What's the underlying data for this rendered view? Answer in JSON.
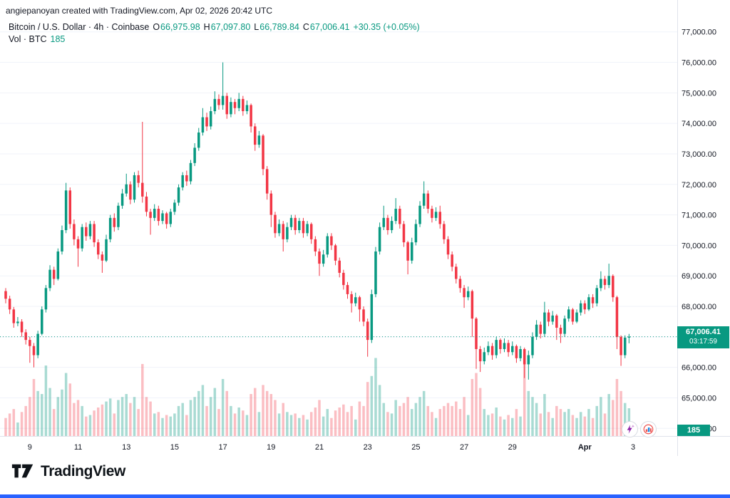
{
  "attribution": "angiepanoyan created with TradingView.com, Apr 02, 2026 20:42 UTC",
  "header": {
    "title": "Bitcoin / U.S. Dollar · 4h · Coinbase",
    "ohlc": {
      "o_label": "O",
      "o": "66,975.98",
      "h_label": "H",
      "h": "67,097.80",
      "l_label": "L",
      "l": "66,789.84",
      "c_label": "C",
      "c": "67,006.41",
      "change": "+30.35 (+0.05%)"
    },
    "volume_label": "Vol · BTC",
    "volume_value": "185"
  },
  "price_badge": {
    "price": "67,006.41",
    "countdown": "03:17:59"
  },
  "volume_badge": {
    "value": "185"
  },
  "footer": {
    "logo_text": "TradingView"
  },
  "colors": {
    "up": "#089981",
    "down": "#f23645",
    "volume_up": "rgba(8,153,129,0.35)",
    "volume_down": "rgba(242,54,69,0.32)",
    "accent_blue": "#2962ff",
    "badge_green": "#089981",
    "axis_text": "#131722",
    "grid": "#f0f3fa"
  },
  "chart_data": {
    "type": "candlestick",
    "title": "Bitcoin / U.S. Dollar · 4h · Coinbase",
    "symbol": "Bitcoin / U.S. Dollar",
    "interval": "4h",
    "exchange": "Coinbase",
    "current_price": 67006.41,
    "current_volume": 185,
    "price_range": [
      63750,
      77250
    ],
    "grid": true,
    "y_ticks": [
      {
        "value": 77000,
        "label": "77,000.00"
      },
      {
        "value": 76000,
        "label": "76,000.00"
      },
      {
        "value": 75000,
        "label": "75,000.00"
      },
      {
        "value": 74000,
        "label": "74,000.00"
      },
      {
        "value": 73000,
        "label": "73,000.00"
      },
      {
        "value": 72000,
        "label": "72,000.00"
      },
      {
        "value": 71000,
        "label": "71,000.00"
      },
      {
        "value": 70000,
        "label": "70,000.00"
      },
      {
        "value": 69000,
        "label": "69,000.00"
      },
      {
        "value": 68000,
        "label": "68,000.00"
      },
      {
        "value": 67000,
        "label": "67,000.00"
      },
      {
        "value": 66000,
        "label": "66,000.00"
      },
      {
        "value": 65000,
        "label": "65,000.00"
      },
      {
        "value": 64000,
        "label": "64,000.00"
      }
    ],
    "x_ticks": [
      {
        "label": "9",
        "index": 6
      },
      {
        "label": "11",
        "index": 18
      },
      {
        "label": "13",
        "index": 30
      },
      {
        "label": "15",
        "index": 42
      },
      {
        "label": "17",
        "index": 54
      },
      {
        "label": "19",
        "index": 66
      },
      {
        "label": "21",
        "index": 78
      },
      {
        "label": "23",
        "index": 90
      },
      {
        "label": "25",
        "index": 102
      },
      {
        "label": "27",
        "index": 114
      },
      {
        "label": "29",
        "index": 126
      },
      {
        "label": "Apr",
        "index": 144,
        "bold": true
      },
      {
        "label": "3",
        "index": 156
      }
    ],
    "candles_format": [
      "open",
      "high",
      "low",
      "close",
      "volume"
    ],
    "candles": [
      [
        68500,
        68600,
        68100,
        68250,
        120
      ],
      [
        68250,
        68350,
        67750,
        67900,
        150
      ],
      [
        67900,
        67980,
        67300,
        67450,
        180
      ],
      [
        67450,
        67650,
        67350,
        67500,
        90
      ],
      [
        67500,
        67580,
        67000,
        67150,
        160
      ],
      [
        67150,
        67250,
        66750,
        66900,
        200
      ],
      [
        66900,
        67000,
        66150,
        66700,
        260
      ],
      [
        66700,
        66800,
        66000,
        66400,
        380
      ],
      [
        66400,
        67200,
        66300,
        67100,
        300
      ],
      [
        67100,
        68000,
        67050,
        67900,
        280
      ],
      [
        67900,
        68700,
        67800,
        68600,
        470
      ],
      [
        68600,
        69350,
        68500,
        69200,
        320
      ],
      [
        69200,
        69300,
        68700,
        68900,
        180
      ],
      [
        68900,
        69900,
        68850,
        69800,
        260
      ],
      [
        69800,
        70650,
        69700,
        70500,
        310
      ],
      [
        70500,
        72050,
        70400,
        71800,
        420
      ],
      [
        71800,
        71900,
        70550,
        70700,
        350
      ],
      [
        70700,
        70850,
        70000,
        70200,
        220
      ],
      [
        70200,
        70300,
        69300,
        69900,
        240
      ],
      [
        69900,
        70700,
        69800,
        70600,
        200
      ],
      [
        70600,
        70750,
        70150,
        70300,
        130
      ],
      [
        70300,
        70800,
        70200,
        70700,
        140
      ],
      [
        70700,
        70800,
        69950,
        70100,
        170
      ],
      [
        70100,
        70200,
        69550,
        69700,
        190
      ],
      [
        69700,
        69800,
        69100,
        69500,
        210
      ],
      [
        69500,
        70350,
        69450,
        70200,
        230
      ],
      [
        70200,
        71000,
        70100,
        70900,
        250
      ],
      [
        70900,
        71050,
        70450,
        70600,
        150
      ],
      [
        70600,
        71400,
        70500,
        71300,
        240
      ],
      [
        71300,
        71850,
        71200,
        71700,
        260
      ],
      [
        71700,
        72350,
        71600,
        72000,
        280
      ],
      [
        72000,
        72100,
        71350,
        71500,
        220
      ],
      [
        71500,
        72400,
        71400,
        72300,
        260
      ],
      [
        72300,
        72450,
        71900,
        72050,
        180
      ],
      [
        72050,
        74050,
        71400,
        71600,
        480
      ],
      [
        71600,
        71750,
        70950,
        71100,
        260
      ],
      [
        71100,
        71200,
        70350,
        70900,
        230
      ],
      [
        70900,
        71350,
        70800,
        71200,
        150
      ],
      [
        71200,
        71300,
        70650,
        70800,
        160
      ],
      [
        70800,
        71150,
        70700,
        71050,
        120
      ],
      [
        71050,
        71100,
        70550,
        70700,
        140
      ],
      [
        70700,
        71200,
        70600,
        71100,
        130
      ],
      [
        71100,
        71500,
        71000,
        71400,
        150
      ],
      [
        71400,
        72000,
        71300,
        71900,
        200
      ],
      [
        71900,
        72400,
        71800,
        72300,
        220
      ],
      [
        72300,
        72450,
        71950,
        72100,
        140
      ],
      [
        72100,
        72800,
        72000,
        72700,
        240
      ],
      [
        72700,
        73350,
        72600,
        73200,
        260
      ],
      [
        73200,
        73850,
        73100,
        73700,
        300
      ],
      [
        73700,
        74500,
        73600,
        74200,
        340
      ],
      [
        74200,
        74350,
        73750,
        73900,
        200
      ],
      [
        73900,
        74550,
        73800,
        74400,
        260
      ],
      [
        74400,
        75050,
        74300,
        74800,
        320
      ],
      [
        74800,
        74950,
        74450,
        74600,
        180
      ],
      [
        74600,
        76000,
        74450,
        74900,
        380
      ],
      [
        74900,
        75000,
        74150,
        74300,
        300
      ],
      [
        74300,
        74850,
        74200,
        74700,
        200
      ],
      [
        74700,
        74800,
        74300,
        74500,
        150
      ],
      [
        74500,
        75000,
        74400,
        74800,
        190
      ],
      [
        74800,
        74900,
        74250,
        74400,
        170
      ],
      [
        74400,
        74750,
        74300,
        74600,
        140
      ],
      [
        74600,
        74650,
        73700,
        73900,
        280
      ],
      [
        73900,
        74000,
        73100,
        73300,
        320
      ],
      [
        73300,
        73750,
        73200,
        73600,
        160
      ],
      [
        73600,
        73650,
        72300,
        72500,
        340
      ],
      [
        72500,
        72600,
        71500,
        71700,
        300
      ],
      [
        71700,
        71800,
        70600,
        71000,
        280
      ],
      [
        71000,
        71100,
        70250,
        70400,
        240
      ],
      [
        70400,
        70850,
        70300,
        70700,
        150
      ],
      [
        70700,
        70800,
        69800,
        70200,
        220
      ],
      [
        70200,
        70750,
        70100,
        70600,
        160
      ],
      [
        70600,
        71000,
        70500,
        70900,
        140
      ],
      [
        70900,
        71000,
        70350,
        70500,
        150
      ],
      [
        70500,
        70900,
        70400,
        70800,
        120
      ],
      [
        70800,
        70900,
        70250,
        70400,
        140
      ],
      [
        70400,
        70800,
        70300,
        70700,
        110
      ],
      [
        70700,
        70750,
        70050,
        70200,
        160
      ],
      [
        70200,
        70300,
        69650,
        69800,
        190
      ],
      [
        69800,
        69900,
        69000,
        69400,
        240
      ],
      [
        69400,
        69850,
        69300,
        69700,
        130
      ],
      [
        69700,
        70400,
        69600,
        70300,
        180
      ],
      [
        70300,
        70400,
        69850,
        70000,
        120
      ],
      [
        70000,
        70050,
        69350,
        69500,
        170
      ],
      [
        69500,
        69600,
        68950,
        69100,
        190
      ],
      [
        69100,
        69200,
        68550,
        68700,
        210
      ],
      [
        68700,
        68800,
        68250,
        68400,
        160
      ],
      [
        68400,
        68500,
        67800,
        68100,
        200
      ],
      [
        68100,
        68450,
        68000,
        68300,
        110
      ],
      [
        68300,
        68350,
        67500,
        67900,
        230
      ],
      [
        67900,
        68000,
        67350,
        67500,
        200
      ],
      [
        67500,
        67600,
        66350,
        66900,
        360
      ],
      [
        66900,
        68550,
        66800,
        68400,
        400
      ],
      [
        68400,
        69950,
        68300,
        69800,
        520
      ],
      [
        69800,
        70750,
        69700,
        70600,
        340
      ],
      [
        70600,
        71300,
        70500,
        70900,
        220
      ],
      [
        70900,
        71000,
        70350,
        70500,
        160
      ],
      [
        70500,
        70950,
        70400,
        70800,
        150
      ],
      [
        70800,
        71550,
        70700,
        71200,
        240
      ],
      [
        71200,
        71300,
        70550,
        70700,
        200
      ],
      [
        70700,
        70800,
        69950,
        70100,
        220
      ],
      [
        70100,
        70150,
        69050,
        69500,
        260
      ],
      [
        69500,
        70250,
        69400,
        70100,
        180
      ],
      [
        70100,
        70850,
        70000,
        70700,
        220
      ],
      [
        70700,
        71450,
        70600,
        71300,
        260
      ],
      [
        71300,
        72100,
        71200,
        71700,
        300
      ],
      [
        71700,
        71800,
        71050,
        71200,
        200
      ],
      [
        71200,
        71300,
        70750,
        70900,
        160
      ],
      [
        70900,
        71250,
        70800,
        71100,
        120
      ],
      [
        71100,
        71300,
        70550,
        70700,
        180
      ],
      [
        70700,
        70800,
        70050,
        70200,
        200
      ],
      [
        70200,
        70300,
        69550,
        69700,
        220
      ],
      [
        69700,
        69800,
        69150,
        69300,
        200
      ],
      [
        69300,
        69400,
        68750,
        68900,
        230
      ],
      [
        68900,
        69000,
        68450,
        68600,
        180
      ],
      [
        68600,
        68700,
        67950,
        68300,
        260
      ],
      [
        68300,
        68650,
        68200,
        68500,
        140
      ],
      [
        68500,
        68550,
        67000,
        67600,
        380
      ],
      [
        67600,
        67650,
        65950,
        66600,
        420
      ],
      [
        66600,
        66700,
        65850,
        66200,
        320
      ],
      [
        66200,
        66650,
        66100,
        66500,
        180
      ],
      [
        66500,
        66850,
        66400,
        66700,
        140
      ],
      [
        66700,
        66800,
        66250,
        66400,
        150
      ],
      [
        66400,
        67000,
        66300,
        66900,
        190
      ],
      [
        66900,
        66950,
        66450,
        66600,
        130
      ],
      [
        66600,
        66950,
        66500,
        66800,
        110
      ],
      [
        66800,
        66900,
        66350,
        66500,
        140
      ],
      [
        66500,
        66850,
        66400,
        66700,
        120
      ],
      [
        66700,
        66750,
        66150,
        66300,
        180
      ],
      [
        66300,
        66700,
        66200,
        66600,
        130
      ],
      [
        66600,
        66650,
        65650,
        66100,
        500
      ],
      [
        66100,
        66550,
        65600,
        66400,
        300
      ],
      [
        66400,
        67150,
        66300,
        67000,
        260
      ],
      [
        67000,
        67550,
        66900,
        67400,
        220
      ],
      [
        67400,
        67500,
        66950,
        67100,
        150
      ],
      [
        67100,
        68150,
        67000,
        67800,
        280
      ],
      [
        67800,
        67900,
        67350,
        67500,
        160
      ],
      [
        67500,
        67850,
        67400,
        67700,
        120
      ],
      [
        67700,
        67750,
        66900,
        67300,
        200
      ],
      [
        67300,
        67400,
        66800,
        67100,
        180
      ],
      [
        67100,
        67700,
        67000,
        67600,
        160
      ],
      [
        67600,
        68000,
        67500,
        67900,
        180
      ],
      [
        67900,
        67950,
        67400,
        67500,
        140
      ],
      [
        67500,
        67900,
        67450,
        67800,
        120
      ],
      [
        67800,
        68200,
        67700,
        68100,
        160
      ],
      [
        68100,
        68200,
        67750,
        67900,
        130
      ],
      [
        67900,
        68400,
        67850,
        68300,
        180
      ],
      [
        68300,
        68400,
        67950,
        68100,
        120
      ],
      [
        68100,
        68700,
        68000,
        68600,
        200
      ],
      [
        68600,
        69150,
        68500,
        68900,
        260
      ],
      [
        68900,
        69000,
        68550,
        68700,
        150
      ],
      [
        68700,
        69400,
        68600,
        69000,
        280
      ],
      [
        69000,
        69050,
        68150,
        68300,
        240
      ],
      [
        68300,
        68350,
        66600,
        67000,
        380
      ],
      [
        67000,
        67050,
        66050,
        66400,
        300
      ],
      [
        66400,
        67050,
        66300,
        66976,
        220
      ],
      [
        66975.98,
        67097.8,
        66789.84,
        67006.41,
        185
      ]
    ]
  }
}
